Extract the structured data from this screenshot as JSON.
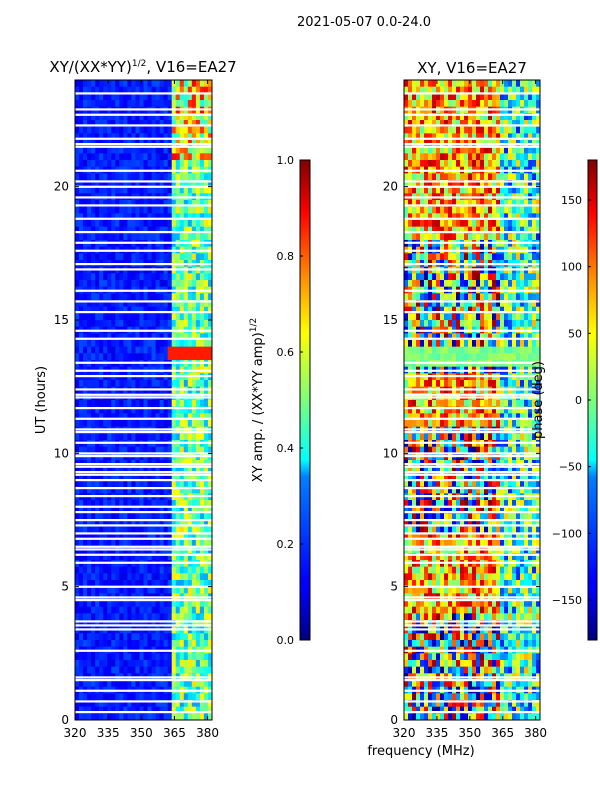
{
  "figure": {
    "suptitle": "2021-05-07 0.0-24.0",
    "xlabel_shared": "frequency (MHz)"
  },
  "chart_data": [
    {
      "type": "heatmap",
      "title": "XY/(XX*YY)",
      "title_sup": "1/2",
      "title_suffix": ", V16=EA27",
      "ylabel": "UT (hours)",
      "xlim": [
        320,
        382
      ],
      "ylim": [
        0,
        24
      ],
      "xticks": [
        320,
        335,
        350,
        365,
        380
      ],
      "yticks": [
        0,
        5,
        10,
        15,
        20
      ],
      "colorbar": {
        "label": "XY amp. / (XX*YY amp)",
        "label_sup": "1/2",
        "range": [
          0.0,
          1.0
        ],
        "ticks": [
          "0.0",
          "0.2",
          "0.4",
          "0.6",
          "0.8",
          "1.0"
        ],
        "tick_values": [
          0,
          0.2,
          0.4,
          0.6,
          0.8,
          1.0
        ]
      }
    },
    {
      "type": "heatmap",
      "title": "XY, V16=EA27",
      "ylabel": "",
      "xlim": [
        320,
        382
      ],
      "ylim": [
        0,
        24
      ],
      "xticks": [
        320,
        335,
        350,
        365,
        380
      ],
      "yticks": [
        0,
        5,
        10,
        15,
        20
      ],
      "colorbar": {
        "label": "phase (deg)",
        "range": [
          -180,
          180
        ],
        "ticks": [
          "150",
          "100",
          "50",
          "0",
          "−50",
          "−100",
          "−150"
        ],
        "tick_values": [
          150,
          100,
          50,
          0,
          -50,
          -100,
          -150
        ]
      }
    }
  ]
}
